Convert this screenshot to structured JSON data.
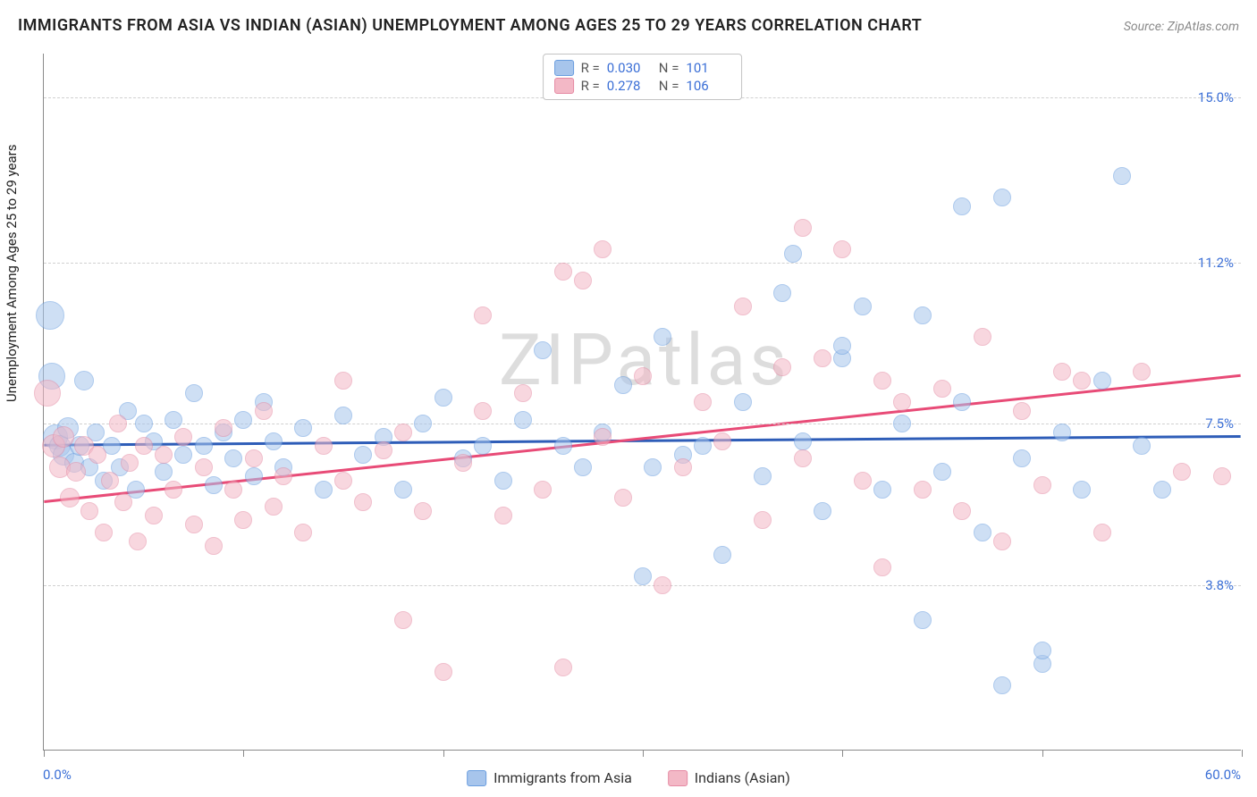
{
  "title": "IMMIGRANTS FROM ASIA VS INDIAN (ASIAN) UNEMPLOYMENT AMONG AGES 25 TO 29 YEARS CORRELATION CHART",
  "source": "Source: ZipAtlas.com",
  "ylabel": "Unemployment Among Ages 25 to 29 years",
  "watermark": "ZIPatlas",
  "chart": {
    "type": "scatter",
    "xlim": [
      0,
      60
    ],
    "ylim": [
      0,
      16
    ],
    "x_tick_positions": [
      0,
      10,
      20,
      30,
      40,
      50,
      60
    ],
    "x_tick_labels_shown": {
      "first": "0.0%",
      "last": "60.0%"
    },
    "y_ticks": [
      3.8,
      7.5,
      11.2,
      15.0
    ],
    "y_tick_labels": [
      "3.8%",
      "7.5%",
      "11.2%",
      "15.0%"
    ],
    "grid_color": "#d0d0d0",
    "axis_color": "#8a8a8a",
    "background_color": "#ffffff",
    "tick_label_color": "#3b6fd6",
    "marker_base_radius": 10,
    "marker_opacity": 0.55,
    "series": [
      {
        "name": "Immigrants from Asia",
        "color_fill": "#a7c5ec",
        "color_stroke": "#6a9edf",
        "R": "0.030",
        "N": "101",
        "line_color": "#2e5db8",
        "trend": {
          "y_at_x0": 7.0,
          "y_at_xmax": 7.2
        },
        "points": [
          [
            0.3,
            10.0,
            16
          ],
          [
            0.4,
            8.6,
            15
          ],
          [
            0.6,
            7.2,
            14
          ],
          [
            0.8,
            7.0,
            12
          ],
          [
            1.0,
            6.8,
            12
          ],
          [
            1.2,
            7.4,
            12
          ],
          [
            1.5,
            6.6,
            11
          ],
          [
            1.8,
            7.0,
            11
          ],
          [
            2.0,
            8.5,
            11
          ],
          [
            2.3,
            6.5,
            10
          ],
          [
            2.6,
            7.3,
            10
          ],
          [
            3.0,
            6.2,
            10
          ],
          [
            3.4,
            7.0,
            10
          ],
          [
            3.8,
            6.5,
            10
          ],
          [
            4.2,
            7.8,
            10
          ],
          [
            4.6,
            6.0,
            10
          ],
          [
            5.0,
            7.5,
            10
          ],
          [
            5.5,
            7.1,
            10
          ],
          [
            6.0,
            6.4,
            10
          ],
          [
            6.5,
            7.6,
            10
          ],
          [
            7.0,
            6.8,
            10
          ],
          [
            7.5,
            8.2,
            10
          ],
          [
            8.0,
            7.0,
            10
          ],
          [
            8.5,
            6.1,
            10
          ],
          [
            9.0,
            7.3,
            10
          ],
          [
            9.5,
            6.7,
            10
          ],
          [
            10.0,
            7.6,
            10
          ],
          [
            10.5,
            6.3,
            10
          ],
          [
            11.0,
            8.0,
            10
          ],
          [
            11.5,
            7.1,
            10
          ],
          [
            12.0,
            6.5,
            10
          ],
          [
            13.0,
            7.4,
            10
          ],
          [
            14.0,
            6.0,
            10
          ],
          [
            15.0,
            7.7,
            10
          ],
          [
            16.0,
            6.8,
            10
          ],
          [
            17.0,
            7.2,
            10
          ],
          [
            18.0,
            6.0,
            10
          ],
          [
            19.0,
            7.5,
            10
          ],
          [
            20.0,
            8.1,
            10
          ],
          [
            21.0,
            6.7,
            10
          ],
          [
            22.0,
            7.0,
            10
          ],
          [
            23.0,
            6.2,
            10
          ],
          [
            24.0,
            7.6,
            10
          ],
          [
            25.0,
            9.2,
            10
          ],
          [
            26.0,
            7.0,
            10
          ],
          [
            27.0,
            6.5,
            10
          ],
          [
            28.0,
            7.3,
            10
          ],
          [
            29.0,
            8.4,
            10
          ],
          [
            30.0,
            4.0,
            10
          ],
          [
            30.5,
            6.5,
            10
          ],
          [
            31.0,
            9.5,
            10
          ],
          [
            32.0,
            6.8,
            10
          ],
          [
            33.0,
            7.0,
            10
          ],
          [
            34.0,
            4.5,
            10
          ],
          [
            35.0,
            8.0,
            10
          ],
          [
            36.0,
            6.3,
            10
          ],
          [
            37.0,
            10.5,
            10
          ],
          [
            37.5,
            11.4,
            10
          ],
          [
            38.0,
            7.1,
            10
          ],
          [
            39.0,
            5.5,
            10
          ],
          [
            40.0,
            9.0,
            10
          ],
          [
            40.0,
            9.3,
            10
          ],
          [
            41.0,
            10.2,
            10
          ],
          [
            42.0,
            6.0,
            10
          ],
          [
            43.0,
            7.5,
            10
          ],
          [
            44.0,
            10.0,
            10
          ],
          [
            44.0,
            3.0,
            10
          ],
          [
            45.0,
            6.4,
            10
          ],
          [
            46.0,
            12.5,
            10
          ],
          [
            46.0,
            8.0,
            10
          ],
          [
            47.0,
            5.0,
            10
          ],
          [
            48.0,
            12.7,
            10
          ],
          [
            48.0,
            1.5,
            10
          ],
          [
            49.0,
            6.7,
            10
          ],
          [
            50.0,
            2.0,
            10
          ],
          [
            50.0,
            2.3,
            10
          ],
          [
            51.0,
            7.3,
            10
          ],
          [
            52.0,
            6.0,
            10
          ],
          [
            53.0,
            8.5,
            10
          ],
          [
            54.0,
            13.2,
            10
          ],
          [
            55.0,
            7.0,
            10
          ],
          [
            56.0,
            6.0,
            10
          ]
        ]
      },
      {
        "name": "Indians (Asian)",
        "color_fill": "#f3b8c6",
        "color_stroke": "#e58aa3",
        "R": "0.278",
        "N": "106",
        "line_color": "#e84b77",
        "trend": {
          "y_at_x0": 5.7,
          "y_at_xmax": 8.6
        },
        "points": [
          [
            0.2,
            8.2,
            15
          ],
          [
            0.5,
            7.0,
            13
          ],
          [
            0.8,
            6.5,
            12
          ],
          [
            1.0,
            7.2,
            12
          ],
          [
            1.3,
            5.8,
            11
          ],
          [
            1.6,
            6.4,
            11
          ],
          [
            2.0,
            7.0,
            11
          ],
          [
            2.3,
            5.5,
            10
          ],
          [
            2.7,
            6.8,
            10
          ],
          [
            3.0,
            5.0,
            10
          ],
          [
            3.3,
            6.2,
            10
          ],
          [
            3.7,
            7.5,
            10
          ],
          [
            4.0,
            5.7,
            10
          ],
          [
            4.3,
            6.6,
            10
          ],
          [
            4.7,
            4.8,
            10
          ],
          [
            5.0,
            7.0,
            10
          ],
          [
            5.5,
            5.4,
            10
          ],
          [
            6.0,
            6.8,
            10
          ],
          [
            6.5,
            6.0,
            10
          ],
          [
            7.0,
            7.2,
            10
          ],
          [
            7.5,
            5.2,
            10
          ],
          [
            8.0,
            6.5,
            10
          ],
          [
            8.5,
            4.7,
            10
          ],
          [
            9.0,
            7.4,
            10
          ],
          [
            9.5,
            6.0,
            10
          ],
          [
            10.0,
            5.3,
            10
          ],
          [
            10.5,
            6.7,
            10
          ],
          [
            11.0,
            7.8,
            10
          ],
          [
            11.5,
            5.6,
            10
          ],
          [
            12.0,
            6.3,
            10
          ],
          [
            13.0,
            5.0,
            10
          ],
          [
            14.0,
            7.0,
            10
          ],
          [
            15.0,
            8.5,
            10
          ],
          [
            15.0,
            6.2,
            10
          ],
          [
            16.0,
            5.7,
            10
          ],
          [
            17.0,
            6.9,
            10
          ],
          [
            18.0,
            7.3,
            10
          ],
          [
            18.0,
            3.0,
            10
          ],
          [
            19.0,
            5.5,
            10
          ],
          [
            20.0,
            1.8,
            10
          ],
          [
            21.0,
            6.6,
            10
          ],
          [
            22.0,
            7.8,
            10
          ],
          [
            22.0,
            10.0,
            10
          ],
          [
            23.0,
            5.4,
            10
          ],
          [
            24.0,
            8.2,
            10
          ],
          [
            25.0,
            6.0,
            10
          ],
          [
            26.0,
            11.0,
            10
          ],
          [
            26.0,
            1.9,
            10
          ],
          [
            27.0,
            10.8,
            10
          ],
          [
            28.0,
            11.5,
            10
          ],
          [
            28.0,
            7.2,
            10
          ],
          [
            29.0,
            5.8,
            10
          ],
          [
            30.0,
            8.6,
            10
          ],
          [
            31.0,
            3.8,
            10
          ],
          [
            32.0,
            6.5,
            10
          ],
          [
            33.0,
            8.0,
            10
          ],
          [
            34.0,
            7.1,
            10
          ],
          [
            35.0,
            10.2,
            10
          ],
          [
            36.0,
            5.3,
            10
          ],
          [
            37.0,
            8.8,
            10
          ],
          [
            38.0,
            6.7,
            10
          ],
          [
            38.0,
            12.0,
            10
          ],
          [
            39.0,
            9.0,
            10
          ],
          [
            40.0,
            11.5,
            10
          ],
          [
            41.0,
            6.2,
            10
          ],
          [
            42.0,
            8.5,
            10
          ],
          [
            42.0,
            4.2,
            10
          ],
          [
            43.0,
            8.0,
            10
          ],
          [
            44.0,
            6.0,
            10
          ],
          [
            45.0,
            8.3,
            10
          ],
          [
            46.0,
            5.5,
            10
          ],
          [
            47.0,
            9.5,
            10
          ],
          [
            48.0,
            4.8,
            10
          ],
          [
            49.0,
            7.8,
            10
          ],
          [
            50.0,
            6.1,
            10
          ],
          [
            51.0,
            8.7,
            10
          ],
          [
            52.0,
            8.5,
            10
          ],
          [
            53.0,
            5.0,
            10
          ],
          [
            55.0,
            8.7,
            10
          ],
          [
            57.0,
            6.4,
            10
          ],
          [
            59.0,
            6.3,
            10
          ]
        ]
      }
    ]
  },
  "legend_bottom": [
    {
      "label": "Immigrants from Asia",
      "fill": "#a7c5ec",
      "stroke": "#6a9edf"
    },
    {
      "label": "Indians (Asian)",
      "fill": "#f3b8c6",
      "stroke": "#e58aa3"
    }
  ]
}
